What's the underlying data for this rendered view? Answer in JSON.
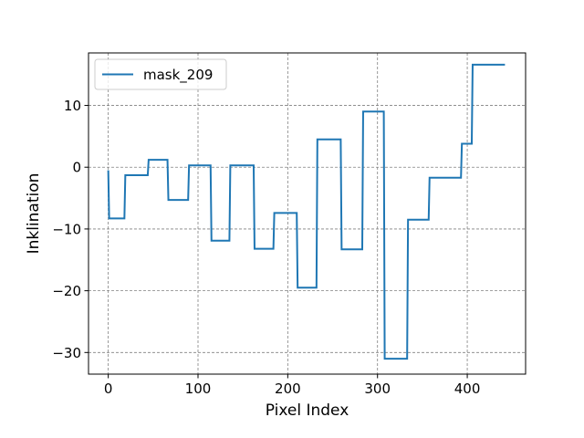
{
  "chart_data": {
    "type": "line",
    "title": "",
    "xlabel": "Pixel Index",
    "ylabel": "Inklination",
    "xlim": [
      -22,
      465
    ],
    "ylim": [
      -33.5,
      18.5
    ],
    "xticks": [
      0,
      100,
      200,
      300,
      400
    ],
    "xtick_labels": [
      "0",
      "100",
      "200",
      "300",
      "400"
    ],
    "yticks": [
      10,
      0,
      -10,
      -20,
      -30
    ],
    "ytick_labels": [
      "10",
      "0",
      "−10",
      "−20",
      "−30"
    ],
    "grid": true,
    "legend_position": "upper-left",
    "series": [
      {
        "name": "mask_209",
        "color": "#1f77b4",
        "x": [
          0,
          1,
          18,
          19,
          44,
          45,
          66,
          67,
          89,
          90,
          114,
          115,
          135,
          136,
          162,
          163,
          184,
          185,
          210,
          211,
          232,
          233,
          259,
          260,
          283,
          284,
          307,
          308,
          333,
          334,
          357,
          358,
          393,
          394,
          405,
          406,
          442
        ],
        "y": [
          -0.5,
          -8.3,
          -8.3,
          -1.3,
          -1.3,
          1.2,
          1.2,
          -5.3,
          -5.3,
          0.3,
          0.3,
          -11.9,
          -11.9,
          0.3,
          0.3,
          -13.2,
          -13.2,
          -7.4,
          -7.4,
          -19.5,
          -19.5,
          4.5,
          4.5,
          -13.3,
          -13.3,
          9.0,
          9.0,
          -31.0,
          -31.0,
          -8.5,
          -8.5,
          -1.7,
          -1.7,
          3.8,
          3.8,
          16.6,
          16.6
        ]
      }
    ]
  }
}
